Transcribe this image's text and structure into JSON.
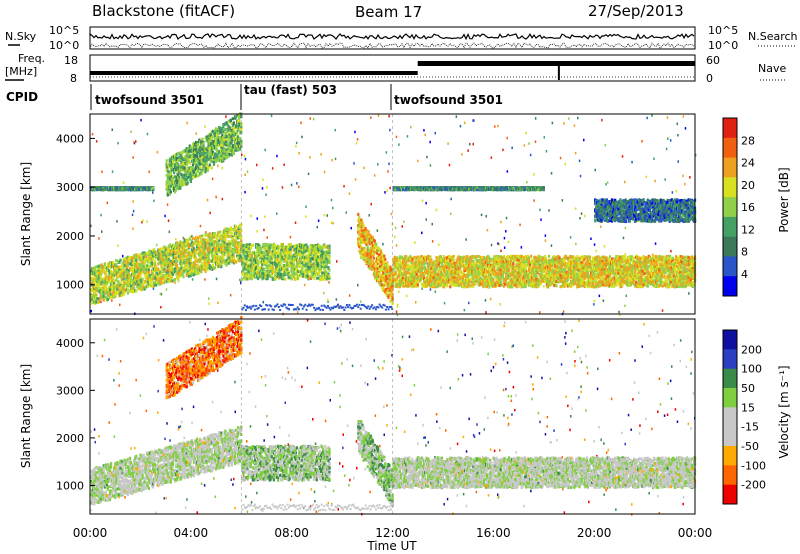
{
  "header": {
    "title": "Blackstone (fitACF)",
    "beam": "Beam 17",
    "date": "27/Sep/2013"
  },
  "noise_panel": {
    "left_label": "N.Sky",
    "right_label": "N.Search",
    "left_ticks": [
      "10^5",
      "10^0"
    ],
    "right_ticks": [
      "10^5",
      "10^0"
    ]
  },
  "freq_panel": {
    "label_line1": "Freq.",
    "label_line2": "[MHz]",
    "left_ticks": [
      "18",
      "8"
    ],
    "right_ticks": [
      "60",
      "0"
    ],
    "right_label": "Nave"
  },
  "cpid": {
    "label": "CPID",
    "segments": [
      {
        "name": "twofsound 3501",
        "start": 0,
        "end": 6
      },
      {
        "name": "tau (fast) 503",
        "start": 6,
        "end": 12
      },
      {
        "name": "twofsound 3501",
        "start": 12,
        "end": 24
      }
    ]
  },
  "xaxis": {
    "label": "Time UT",
    "ticks": [
      "00:00",
      "04:00",
      "08:00",
      "12:00",
      "16:00",
      "20:00",
      "00:00"
    ]
  },
  "colors": {
    "power": [
      "#0000ee",
      "#2955c8",
      "#3a7a5a",
      "#44a064",
      "#8fd14a",
      "#d8e020",
      "#f0a020",
      "#f06010",
      "#e02010"
    ],
    "velocity": [
      "#ee0000",
      "#ff6600",
      "#ffaa00",
      "#c8c8c8",
      "#c8c8c8",
      "#7fcf40",
      "#3a8a4a",
      "#2a40c0",
      "#1010a0"
    ]
  },
  "chart_data": [
    {
      "type": "heatmap",
      "panel": "power",
      "ylabel": "Slant Range [km]",
      "yticks": [
        "1000",
        "2000",
        "3000",
        "4000"
      ],
      "ylim": [
        400,
        4500
      ],
      "xlim": [
        0,
        24
      ],
      "colorbar": {
        "label": "Power [dB]",
        "ticks": [
          "4",
          "8",
          "12",
          "16",
          "20",
          "24",
          "28"
        ],
        "range": [
          0,
          32
        ]
      },
      "bands": [
        {
          "t0": 0,
          "t1": 6,
          "r0": 950,
          "r1": 2050,
          "r_center_start": 1000,
          "r_center_end": 1900,
          "power": 18
        },
        {
          "t0": 3,
          "t1": 6,
          "r0": 3100,
          "r1": 4200,
          "r_center_start": 3200,
          "r_center_end": 4200,
          "power": 14
        },
        {
          "t0": 6,
          "t1": 9.5,
          "r0": 1200,
          "r1": 2000,
          "r_center_start": 1500,
          "r_center_end": 1500,
          "power": 16
        },
        {
          "t0": 10.6,
          "t1": 12,
          "r0": 800,
          "r1": 2200,
          "r_center_start": 2100,
          "r_center_end": 950,
          "power": 22
        },
        {
          "t0": 12,
          "t1": 24,
          "r0": 1000,
          "r1": 1700,
          "r_center_start": 1300,
          "r_center_end": 1300,
          "power": 20
        },
        {
          "t0": 0,
          "t1": 2.5,
          "r0": 3000,
          "r1": 3050,
          "r_center_start": 3000,
          "r_center_end": 3000,
          "power": 10
        },
        {
          "t0": 12,
          "t1": 18,
          "r0": 3000,
          "r1": 3050,
          "r_center_start": 3000,
          "r_center_end": 3000,
          "power": 10
        },
        {
          "t0": 20,
          "t1": 24,
          "r0": 2300,
          "r1": 2800,
          "r_center_start": 2550,
          "r_center_end": 2550,
          "power": 8
        }
      ]
    },
    {
      "type": "heatmap",
      "panel": "velocity",
      "ylabel": "Slant Range [km]",
      "yticks": [
        "1000",
        "2000",
        "3000",
        "4000"
      ],
      "ylim": [
        400,
        4500
      ],
      "xlim": [
        0,
        24
      ],
      "colorbar": {
        "label": "Velocity [m s⁻¹]",
        "ticks": [
          "200",
          "100",
          "50",
          "15",
          "-15",
          "-50",
          "-100",
          "-200"
        ],
        "range": [
          -250,
          250
        ]
      },
      "bands": [
        {
          "t0": 0,
          "t1": 6,
          "r0": 950,
          "r1": 2050,
          "r_center_start": 1000,
          "r_center_end": 1900,
          "velocity": 0
        },
        {
          "t0": 6,
          "t1": 9.5,
          "r0": 1200,
          "r1": 2000,
          "r_center_start": 1500,
          "r_center_end": 1500,
          "velocity": 30
        },
        {
          "t0": 10.6,
          "t1": 12,
          "r0": 800,
          "r1": 2200,
          "r_center_start": 2100,
          "r_center_end": 950,
          "velocity": 40
        },
        {
          "t0": 12,
          "t1": 24,
          "r0": 1000,
          "r1": 1700,
          "r_center_start": 1300,
          "r_center_end": 1300,
          "velocity": 0
        },
        {
          "t0": 3,
          "t1": 6,
          "r0": 3100,
          "r1": 4200,
          "r_center_start": 3200,
          "r_center_end": 4200,
          "velocity": -150
        }
      ]
    }
  ]
}
